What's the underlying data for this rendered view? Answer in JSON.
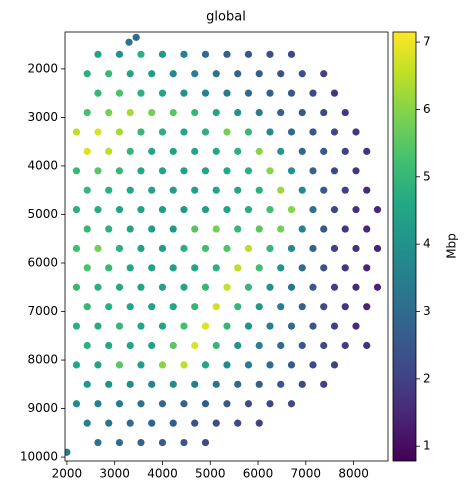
{
  "chart_data": {
    "type": "scatter",
    "title": "global",
    "colormap": "viridis",
    "colorbar_label": "Mbp",
    "xlim": [
      1960,
      8720
    ],
    "xticks": [
      2000,
      3000,
      4000,
      5000,
      6000,
      7000,
      8000
    ],
    "ylim": [
      10080,
      1240
    ],
    "yticks": [
      2000,
      3000,
      4000,
      5000,
      6000,
      7000,
      8000,
      9000,
      10000
    ],
    "clim": [
      0.78,
      7.15
    ],
    "cticks": [
      1,
      2,
      3,
      4,
      5,
      6,
      7
    ],
    "x": [
      2650,
      3100,
      3550,
      4000,
      4450,
      4900,
      5350,
      5800,
      6250,
      6700,
      2425,
      2875,
      3325,
      3775,
      4225,
      4675,
      5125,
      5575,
      6025,
      6475,
      6925,
      7375,
      2650,
      3100,
      3550,
      4000,
      4450,
      4900,
      5350,
      5800,
      6250,
      6700,
      7150,
      7600,
      2425,
      2875,
      3325,
      3775,
      4225,
      4675,
      5125,
      5575,
      6025,
      6475,
      6925,
      7375,
      7825,
      2200,
      2650,
      3100,
      3550,
      4000,
      4450,
      4900,
      5350,
      5800,
      6250,
      6700,
      7150,
      7600,
      8050,
      2425,
      2875,
      3325,
      3775,
      4225,
      4675,
      5125,
      5575,
      6025,
      6475,
      6925,
      7375,
      7825,
      8275,
      2200,
      2650,
      3100,
      3550,
      4000,
      4450,
      4900,
      5350,
      5800,
      6250,
      6700,
      7150,
      7600,
      8050,
      2425,
      2875,
      3325,
      3775,
      4225,
      4675,
      5125,
      5575,
      6025,
      6475,
      6925,
      7375,
      7825,
      8275,
      2200,
      2650,
      3100,
      3550,
      4000,
      4450,
      4900,
      5350,
      5800,
      6250,
      6700,
      7150,
      7600,
      8050,
      8500,
      2425,
      2875,
      3325,
      3775,
      4225,
      4675,
      5125,
      5575,
      6025,
      6475,
      6925,
      7375,
      7825,
      8275,
      2200,
      2650,
      3100,
      3550,
      4000,
      4450,
      4900,
      5350,
      5800,
      6250,
      6700,
      7150,
      7600,
      8050,
      8500,
      2425,
      2875,
      3325,
      3775,
      4225,
      4675,
      5125,
      5575,
      6025,
      6475,
      6925,
      7375,
      7825,
      8275,
      2200,
      2650,
      3100,
      3550,
      4000,
      4450,
      4900,
      5350,
      5800,
      6250,
      6700,
      7150,
      7600,
      8050,
      8500,
      2425,
      2875,
      3325,
      3775,
      4225,
      4675,
      5125,
      5575,
      6025,
      6475,
      6925,
      7375,
      7825,
      8275,
      2200,
      2650,
      3100,
      3550,
      4000,
      4450,
      4900,
      5350,
      5800,
      6250,
      6700,
      7150,
      7600,
      8050,
      2425,
      2875,
      3325,
      3775,
      4225,
      4675,
      5125,
      5575,
      6025,
      6475,
      6925,
      7375,
      7825,
      8275,
      2200,
      2650,
      3100,
      3550,
      4000,
      4450,
      4900,
      5350,
      5800,
      6250,
      6700,
      7150,
      7600,
      2425,
      2875,
      3325,
      3775,
      4225,
      4675,
      5125,
      5575,
      6025,
      6475,
      6925,
      7375,
      2200,
      2650,
      3100,
      3550,
      4000,
      4450,
      4900,
      5350,
      5800,
      6250,
      6700,
      2425,
      2875,
      3325,
      3775,
      4225,
      4675,
      5125,
      5575,
      6025,
      2650,
      3100,
      3550,
      4000,
      4450,
      4900,
      2000,
      3300,
      3450
    ],
    "y": [
      1700,
      1700,
      1700,
      1700,
      1700,
      1700,
      1700,
      1700,
      1700,
      1700,
      2100,
      2100,
      2100,
      2100,
      2100,
      2100,
      2100,
      2100,
      2100,
      2100,
      2100,
      2100,
      2500,
      2500,
      2500,
      2500,
      2500,
      2500,
      2500,
      2500,
      2500,
      2500,
      2500,
      2500,
      2900,
      2900,
      2900,
      2900,
      2900,
      2900,
      2900,
      2900,
      2900,
      2900,
      2900,
      2900,
      2900,
      3300,
      3300,
      3300,
      3300,
      3300,
      3300,
      3300,
      3300,
      3300,
      3300,
      3300,
      3300,
      3300,
      3300,
      3700,
      3700,
      3700,
      3700,
      3700,
      3700,
      3700,
      3700,
      3700,
      3700,
      3700,
      3700,
      3700,
      3700,
      4100,
      4100,
      4100,
      4100,
      4100,
      4100,
      4100,
      4100,
      4100,
      4100,
      4100,
      4100,
      4100,
      4100,
      4500,
      4500,
      4500,
      4500,
      4500,
      4500,
      4500,
      4500,
      4500,
      4500,
      4500,
      4500,
      4500,
      4500,
      4900,
      4900,
      4900,
      4900,
      4900,
      4900,
      4900,
      4900,
      4900,
      4900,
      4900,
      4900,
      4900,
      4900,
      4900,
      5300,
      5300,
      5300,
      5300,
      5300,
      5300,
      5300,
      5300,
      5300,
      5300,
      5300,
      5300,
      5300,
      5300,
      5700,
      5700,
      5700,
      5700,
      5700,
      5700,
      5700,
      5700,
      5700,
      5700,
      5700,
      5700,
      5700,
      5700,
      5700,
      6100,
      6100,
      6100,
      6100,
      6100,
      6100,
      6100,
      6100,
      6100,
      6100,
      6100,
      6100,
      6100,
      6100,
      6500,
      6500,
      6500,
      6500,
      6500,
      6500,
      6500,
      6500,
      6500,
      6500,
      6500,
      6500,
      6500,
      6500,
      6500,
      6900,
      6900,
      6900,
      6900,
      6900,
      6900,
      6900,
      6900,
      6900,
      6900,
      6900,
      6900,
      6900,
      6900,
      7300,
      7300,
      7300,
      7300,
      7300,
      7300,
      7300,
      7300,
      7300,
      7300,
      7300,
      7300,
      7300,
      7300,
      7700,
      7700,
      7700,
      7700,
      7700,
      7700,
      7700,
      7700,
      7700,
      7700,
      7700,
      7700,
      7700,
      7700,
      8100,
      8100,
      8100,
      8100,
      8100,
      8100,
      8100,
      8100,
      8100,
      8100,
      8100,
      8100,
      8100,
      8500,
      8500,
      8500,
      8500,
      8500,
      8500,
      8500,
      8500,
      8500,
      8500,
      8500,
      8500,
      8900,
      8900,
      8900,
      8900,
      8900,
      8900,
      8900,
      8900,
      8900,
      8900,
      8900,
      9300,
      9300,
      9300,
      9300,
      9300,
      9300,
      9300,
      9300,
      9300,
      9700,
      9700,
      9700,
      9700,
      9700,
      9700,
      9900,
      1450,
      1350
    ],
    "values": [
      4.5,
      4,
      4.8,
      4.2,
      3.5,
      3,
      2.8,
      2.5,
      2.3,
      2.2,
      4.8,
      5,
      4.5,
      4.3,
      3.8,
      3.5,
      3.2,
      2.8,
      2.6,
      2.4,
      2.3,
      2,
      5,
      5.3,
      4.8,
      4.5,
      4,
      3.6,
      3.3,
      3,
      2.7,
      2.5,
      2.2,
      1.8,
      5.2,
      5.8,
      6.3,
      5.8,
      5.5,
      5,
      4.5,
      4,
      3.4,
      2.8,
      2.5,
      2.2,
      1.8,
      6.5,
      6.8,
      6.3,
      5,
      4.8,
      4.6,
      4.8,
      5.8,
      5,
      3.8,
      3,
      2.5,
      2.1,
      1.8,
      6.8,
      6.5,
      5,
      4.6,
      4.5,
      4.5,
      4.6,
      4.8,
      6,
      4.2,
      3,
      2.5,
      2,
      1.7,
      5,
      5.5,
      5,
      4.6,
      4.5,
      4.4,
      4.5,
      4.6,
      4.8,
      6,
      4,
      2.8,
      2.2,
      1.8,
      5,
      4.8,
      4.6,
      4.5,
      4.3,
      4.4,
      4.5,
      4.6,
      4.8,
      6.2,
      3.8,
      2.6,
      2,
      1.6,
      4.8,
      4.7,
      4.5,
      4.4,
      4.3,
      4.2,
      4.3,
      4.5,
      4.7,
      5.2,
      6,
      3.2,
      2.2,
      1.7,
      1.5,
      5,
      4.8,
      4.5,
      4.3,
      4.2,
      5.5,
      5.8,
      5,
      5.5,
      5.8,
      3.5,
      2.5,
      1.8,
      1.5,
      5.2,
      5.8,
      4.8,
      4.4,
      4.3,
      4.8,
      5.2,
      5.4,
      6.5,
      5,
      3.8,
      2.8,
      2,
      1.7,
      1.4,
      5.3,
      5,
      4.6,
      4.4,
      4.3,
      4.5,
      4.8,
      6.5,
      5.2,
      4,
      3,
      2.4,
      1.8,
      1.5,
      5,
      4.8,
      4.6,
      4.5,
      4.4,
      4.5,
      5,
      6.6,
      5,
      4,
      3.2,
      2.5,
      2,
      1.6,
      1.4,
      5,
      4.8,
      4.6,
      4.5,
      4.6,
      5,
      6.7,
      5,
      4.2,
      3.5,
      2.8,
      2.2,
      1.8,
      1.5,
      4.8,
      4.7,
      5,
      4.6,
      4.5,
      5.2,
      6.8,
      5,
      4,
      3.5,
      3,
      2.4,
      2,
      1.6,
      4.8,
      4.6,
      4.5,
      4.4,
      5.5,
      6.8,
      5,
      4,
      3.5,
      3,
      2.5,
      2.2,
      1.9,
      1.7,
      4.6,
      4.5,
      5.5,
      4.3,
      6,
      6.5,
      4.5,
      3.8,
      3.4,
      3,
      2.6,
      2.2,
      2,
      4.2,
      4,
      3.8,
      3.6,
      3.8,
      3.5,
      3.2,
      3,
      2.8,
      2.5,
      2.2,
      2,
      3.8,
      3.5,
      3.4,
      3.2,
      3,
      2.8,
      2.6,
      2.5,
      2.3,
      2.2,
      2.1,
      3.5,
      3.2,
      3,
      2.8,
      2.6,
      2.4,
      2.3,
      2.2,
      2,
      3.2,
      3,
      2.8,
      2.6,
      2.5,
      2.3,
      3.4,
      3.2,
      3
    ]
  }
}
